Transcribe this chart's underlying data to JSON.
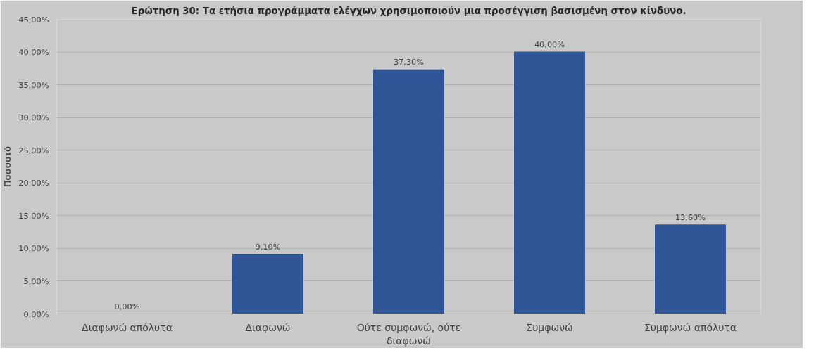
{
  "chart_data": {
    "type": "bar",
    "title": "Ερώτηση 30: Τα ετήσια προγράμματα ελέγχων χρησιμοποιούν μια προσέγγιση βασισμένη στον κίνδυνο.",
    "ylabel": "Ποσοστό",
    "categories": [
      "Διαφωνώ απόλυτα",
      "Διαφωνώ",
      "Ούτε συμφωνώ, ούτε διαφωνώ",
      "Συμφωνώ",
      "Συμφωνώ απόλυτα"
    ],
    "values": [
      0,
      9.1,
      37.3,
      40,
      13.6
    ],
    "value_labels": [
      "0,00%",
      "9,10%",
      "37,30%",
      "40,00%",
      "13,60%"
    ],
    "color": "#2f5597",
    "ylim": [
      0,
      45
    ],
    "yticks": [
      {
        "value": 0,
        "label": "0,00%"
      },
      {
        "value": 5,
        "label": "5,00%"
      },
      {
        "value": 10,
        "label": "10,00%"
      },
      {
        "value": 15,
        "label": "15,00%"
      },
      {
        "value": 20,
        "label": "20,00%"
      },
      {
        "value": 25,
        "label": "25,00%"
      },
      {
        "value": 30,
        "label": "30,00%"
      },
      {
        "value": 35,
        "label": "35,00%"
      },
      {
        "value": 40,
        "label": "40,00%"
      },
      {
        "value": 45,
        "label": "45,00%"
      }
    ],
    "grid": "y"
  }
}
